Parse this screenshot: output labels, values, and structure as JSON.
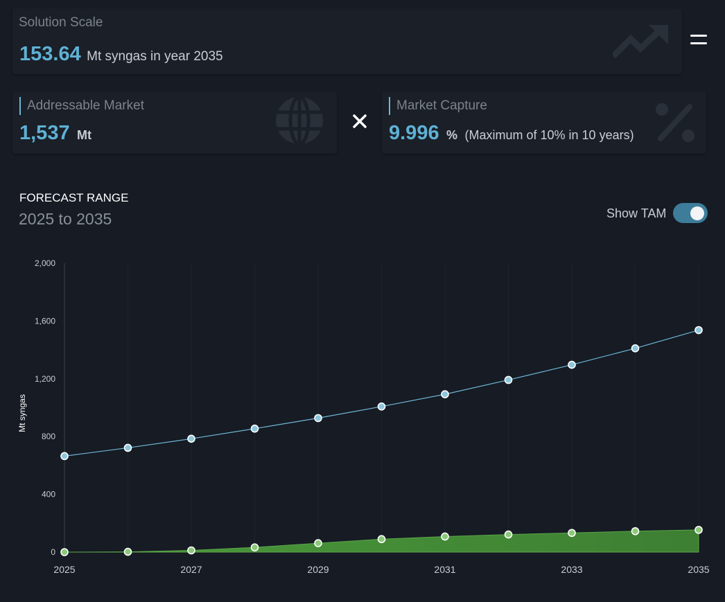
{
  "solution_scale": {
    "title": "Solution Scale",
    "value": "153.64",
    "description": "Mt syngas in year 2035"
  },
  "addressable_market": {
    "title": "Addressable Market",
    "value": "1,537",
    "unit": "Mt"
  },
  "market_capture": {
    "title": "Market Capture",
    "value": "9.996",
    "unit": "%",
    "note": "(Maximum of 10% in 10 years)"
  },
  "forecast": {
    "label": "FORECAST RANGE",
    "range": "2025 to 2035"
  },
  "toggle": {
    "label": "Show TAM",
    "on": true
  },
  "colors": {
    "accent": "#5fb1d4",
    "tam_line": "#6fb7d6",
    "solution_fill": "#3e7f33",
    "solution_marker": "#8cc97a"
  },
  "chart_data": {
    "type": "area",
    "ylabel": "Mt syngas",
    "xlabel": "",
    "ylim": [
      0,
      2000
    ],
    "y_ticks": [
      0,
      400,
      800,
      1200,
      1600,
      2000
    ],
    "y_tick_labels": [
      "0",
      "400",
      "800",
      "1,200",
      "1,600",
      "2,000"
    ],
    "x": [
      2025,
      2026,
      2027,
      2028,
      2029,
      2030,
      2031,
      2032,
      2033,
      2034,
      2035
    ],
    "x_tick_labels": [
      "2025",
      "2027",
      "2029",
      "2031",
      "2033",
      "2035"
    ],
    "series": [
      {
        "name": "TAM",
        "style": "line",
        "values": [
          665,
          722,
          785,
          855,
          928,
          1008,
          1093,
          1192,
          1297,
          1411,
          1537
        ]
      },
      {
        "name": "Solution Scale",
        "style": "area",
        "values": [
          0,
          2,
          12,
          33,
          62,
          90,
          108,
          122,
          133,
          145,
          154
        ]
      }
    ]
  }
}
